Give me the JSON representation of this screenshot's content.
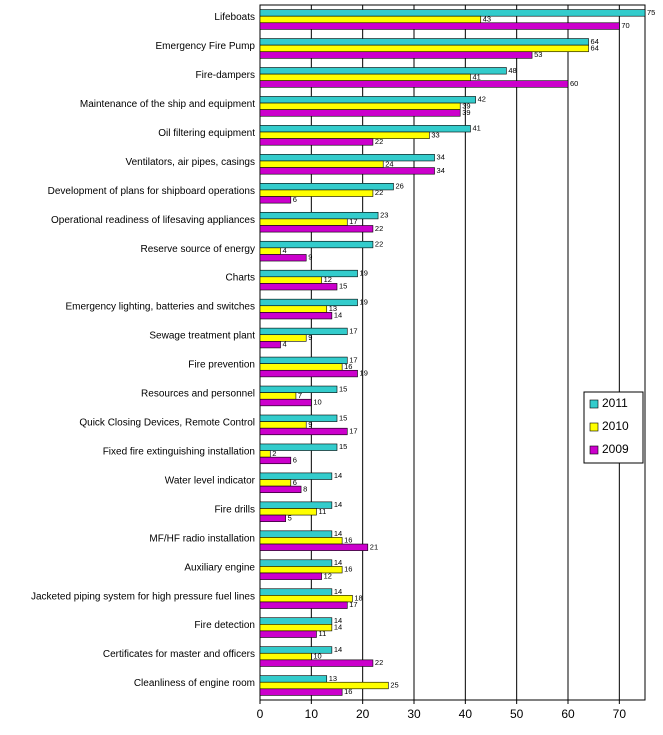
{
  "chart_data": {
    "type": "hbar",
    "categories": [
      "Lifeboats",
      "Emergency Fire Pump",
      "Fire-dampers",
      "Maintenance of the ship and equipment",
      "Oil filtering equipment",
      "Ventilators, air pipes, casings",
      "Development of plans for shipboard operations",
      "Operational readiness of lifesaving appliances",
      "Reserve source of energy",
      "Charts",
      "Emergency lighting, batteries and switches",
      "Sewage treatment plant",
      "Fire prevention",
      "Resources and personnel",
      "Quick Closing Devices, Remote Control",
      "Fixed fire extinguishing installation",
      "Water level indicator",
      "Fire drills",
      "MF/HF radio installation",
      "Auxiliary engine",
      "Jacketed piping system for high pressure fuel lines",
      "Fire detection",
      "Certificates for master and officers",
      "Cleanliness of engine room"
    ],
    "series": [
      {
        "name": "2011",
        "color": "#33cccc",
        "values": [
          75,
          64,
          48,
          42,
          41,
          34,
          26,
          23,
          22,
          19,
          19,
          17,
          17,
          15,
          15,
          15,
          14,
          14,
          14,
          14,
          14,
          14,
          14,
          13
        ]
      },
      {
        "name": "2010",
        "color": "#ffff00",
        "values": [
          43,
          64,
          41,
          39,
          33,
          24,
          22,
          17,
          4,
          12,
          13,
          9,
          16,
          7,
          9,
          2,
          6,
          11,
          16,
          16,
          18,
          14,
          10,
          25
        ]
      },
      {
        "name": "2009",
        "color": "#cc00cc",
        "values": [
          70,
          53,
          60,
          39,
          22,
          34,
          6,
          22,
          9,
          15,
          14,
          4,
          19,
          10,
          17,
          6,
          8,
          5,
          21,
          12,
          17,
          11,
          22,
          16
        ]
      }
    ],
    "xlim": [
      0,
      75
    ],
    "xticks": [
      0,
      10,
      20,
      30,
      40,
      50,
      60,
      70
    ],
    "grid": true,
    "legend": "right"
  }
}
